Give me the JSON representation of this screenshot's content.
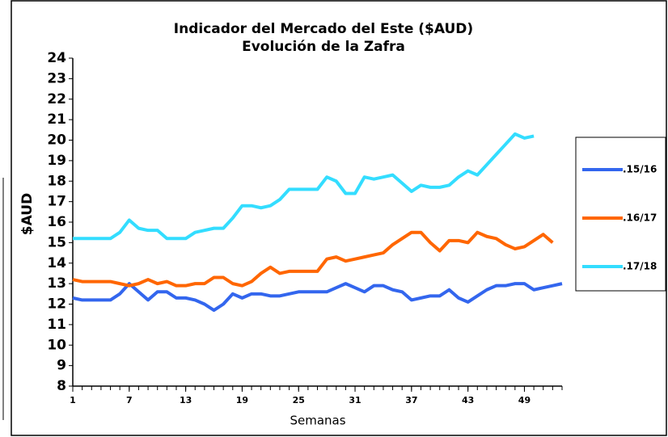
{
  "chart_data": {
    "type": "line",
    "title": "Indicador del Mercado del Este ($AUD)",
    "subtitle": "Evolución de la Zafra",
    "x_label": "Semanas",
    "y_label": "$AUD",
    "x": [
      1,
      2,
      3,
      4,
      5,
      6,
      7,
      8,
      9,
      10,
      11,
      12,
      13,
      14,
      15,
      16,
      17,
      18,
      19,
      20,
      21,
      22,
      23,
      24,
      25,
      26,
      27,
      28,
      29,
      30,
      31,
      32,
      33,
      34,
      35,
      36,
      37,
      38,
      39,
      40,
      41,
      42,
      43,
      44,
      45,
      46,
      47,
      48,
      49,
      50,
      51,
      52,
      53
    ],
    "xlim": [
      1,
      53
    ],
    "xticks": [
      1,
      7,
      13,
      19,
      25,
      31,
      37,
      43,
      49
    ],
    "ylim": [
      8,
      24
    ],
    "yticks": [
      8,
      9,
      10,
      11,
      12,
      13,
      14,
      15,
      16,
      17,
      18,
      19,
      20,
      21,
      22,
      23,
      24
    ],
    "grid": false,
    "legend": "right",
    "series": [
      {
        "name": ".15/16",
        "color": "#3366ee",
        "values": [
          12.3,
          12.2,
          12.2,
          12.2,
          12.2,
          12.5,
          13.0,
          12.6,
          12.2,
          12.6,
          12.6,
          12.3,
          12.3,
          12.2,
          12.0,
          11.7,
          12.0,
          12.5,
          12.3,
          12.5,
          12.5,
          12.4,
          12.4,
          12.5,
          12.6,
          12.6,
          12.6,
          12.6,
          12.8,
          13.0,
          12.8,
          12.6,
          12.9,
          12.9,
          12.7,
          12.6,
          12.2,
          12.3,
          12.4,
          12.4,
          12.7,
          12.3,
          12.1,
          12.4,
          12.7,
          12.9,
          12.9,
          13.0,
          13.0,
          12.7,
          12.8,
          12.9,
          13.0
        ]
      },
      {
        "name": ".16/17",
        "color": "#ff6600",
        "values": [
          13.2,
          13.1,
          13.1,
          13.1,
          13.1,
          13.0,
          12.9,
          13.0,
          13.2,
          13.0,
          13.1,
          12.9,
          12.9,
          13.0,
          13.0,
          13.3,
          13.3,
          13.0,
          12.9,
          13.1,
          13.5,
          13.8,
          13.5,
          13.6,
          13.6,
          13.6,
          13.6,
          14.2,
          14.3,
          14.1,
          14.2,
          14.3,
          14.4,
          14.5,
          14.9,
          15.2,
          15.5,
          15.5,
          15.0,
          14.6,
          15.1,
          15.1,
          15.0,
          15.5,
          15.3,
          15.2,
          14.9,
          14.7,
          14.8,
          15.1,
          15.4,
          15.0,
          null
        ]
      },
      {
        "name": ".17/18",
        "color": "#33ddff",
        "values": [
          15.2,
          15.2,
          15.2,
          15.2,
          15.2,
          15.5,
          16.1,
          15.7,
          15.6,
          15.6,
          15.2,
          15.2,
          15.2,
          15.5,
          15.6,
          15.7,
          15.7,
          16.2,
          16.8,
          16.8,
          16.7,
          16.8,
          17.1,
          17.6,
          17.6,
          17.6,
          17.6,
          18.2,
          18.0,
          17.4,
          17.4,
          18.2,
          18.1,
          18.2,
          18.3,
          17.9,
          17.5,
          17.8,
          17.7,
          17.7,
          17.8,
          18.2,
          18.5,
          18.3,
          18.8,
          19.3,
          19.8,
          20.3,
          20.1,
          20.2,
          null,
          null,
          null
        ]
      }
    ]
  }
}
